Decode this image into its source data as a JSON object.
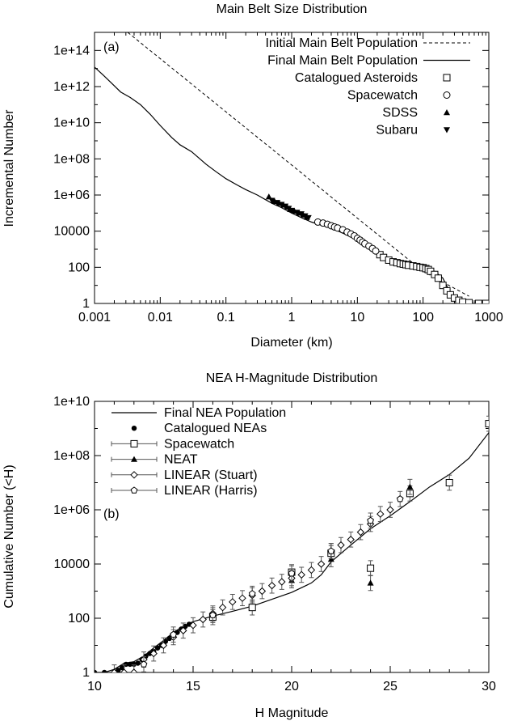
{
  "chart_data": [
    {
      "type": "line",
      "panel_label": "(a)",
      "title": "Main Belt Size Distribution",
      "xlabel": "Diameter (km)",
      "ylabel": "Incremental Number",
      "xscale": "log",
      "yscale": "log",
      "xlim": [
        0.001,
        1000
      ],
      "ylim": [
        1,
        1000000000000000.0
      ],
      "xticks": [
        0.001,
        0.01,
        0.1,
        1,
        10,
        100,
        1000
      ],
      "xtick_labels": [
        "0.001",
        "0.01",
        "0.1",
        "1",
        "10",
        "100",
        "1000"
      ],
      "yticks": [
        1,
        100,
        10000,
        1000000,
        100000000,
        10000000000,
        1000000000000,
        100000000000000
      ],
      "ytick_labels": [
        "1",
        "100",
        "10000",
        "1e+06",
        "1e+08",
        "1e+10",
        "1e+12",
        "1e+14"
      ],
      "grid": false,
      "legend_position": "top-right",
      "series": [
        {
          "name": "Initial Main Belt Population",
          "style": "dashed",
          "x": [
            0.0032,
            100,
            500
          ],
          "y": [
            1000000000000000.0,
            60,
            2.5
          ]
        },
        {
          "name": "Final Main Belt Population",
          "style": "solid",
          "x": [
            0.001,
            0.0013,
            0.0018,
            0.0025,
            0.0035,
            0.005,
            0.007,
            0.01,
            0.015,
            0.02,
            0.03,
            0.05,
            0.07,
            0.1,
            0.15,
            0.2,
            0.3,
            0.5,
            0.7,
            1,
            1.5,
            2,
            3,
            4,
            5,
            7,
            10,
            15,
            20,
            30,
            50,
            70,
            100,
            150,
            200,
            250,
            300,
            400,
            500
          ],
          "y": [
            12000000000000.0,
            5000000000000.0,
            1600000000000.0,
            500000000000.0,
            250000000000.0,
            100000000000.0,
            30000000000.0,
            7000000000.0,
            1500000000.0,
            600000000.0,
            250000000.0,
            50000000.0,
            20000000.0,
            8000000.0,
            3500000.0,
            2000000.0,
            1000000.0,
            350000.0,
            200000.0,
            100000.0,
            50000.0,
            32000.0,
            20000.0,
            15000.0,
            10500.0,
            6000,
            3000,
            1000,
            500,
            250,
            180,
            140,
            100,
            60,
            25,
            5,
            2,
            1.3,
            1
          ]
        },
        {
          "name": "Catalogued Asteroids",
          "marker": "square-open",
          "x": [
            22,
            25,
            30,
            35,
            40,
            45,
            50,
            55,
            60,
            70,
            80,
            90,
            100,
            110,
            120,
            130,
            150,
            170,
            200,
            230,
            260,
            300,
            350,
            400,
            500,
            700,
            900
          ],
          "y": [
            500,
            350,
            250,
            200,
            180,
            160,
            150,
            140,
            130,
            120,
            110,
            100,
            95,
            85,
            75,
            60,
            40,
            25,
            10,
            5,
            3,
            2,
            1.5,
            1.2,
            1.1,
            1,
            1
          ]
        },
        {
          "name": "Spacewatch",
          "marker": "circle-open",
          "x": [
            2.5,
            3,
            3.5,
            4,
            4.5,
            5,
            6,
            7,
            8,
            9,
            10,
            11,
            12,
            13,
            15,
            17,
            19
          ],
          "y": [
            32000.0,
            28000.0,
            24000.0,
            20000.0,
            17000.0,
            15000.0,
            12000.0,
            9000,
            7000,
            5500,
            4000,
            3200,
            2500,
            2000,
            1500,
            1100,
            800
          ]
        },
        {
          "name": "SDSS",
          "marker": "triangle-up-filled",
          "x": [
            0.45,
            0.55,
            0.65,
            0.75,
            0.85,
            0.95,
            1.1,
            1.3,
            1.5,
            1.7
          ],
          "y": [
            800000.0,
            450000.0,
            350000.0,
            280000.0,
            220000.0,
            160000.0,
            130000.0,
            100000.0,
            80000.0,
            60000.0
          ]
        },
        {
          "name": "Subaru",
          "marker": "triangle-down-filled",
          "x": [
            0.5,
            0.6,
            0.7,
            0.8,
            0.9,
            1,
            1.2,
            1.4,
            1.6,
            1.8
          ],
          "y": [
            500000.0,
            380000.0,
            300000.0,
            240000.0,
            180000.0,
            140000.0,
            110000.0,
            90000.0,
            70000.0,
            55000.0
          ]
        }
      ]
    },
    {
      "type": "line",
      "panel_label": "(b)",
      "title": "NEA H-Magnitude Distribution",
      "xlabel": "H Magnitude",
      "ylabel": "Cumulative Number (<H)",
      "xscale": "linear",
      "yscale": "log",
      "xlim": [
        10,
        30
      ],
      "ylim": [
        1,
        10000000000.0
      ],
      "xticks": [
        10,
        15,
        20,
        25,
        30
      ],
      "xtick_labels": [
        "10",
        "15",
        "20",
        "25",
        "30"
      ],
      "yticks": [
        1,
        100,
        10000,
        1000000,
        100000000,
        10000000000
      ],
      "ytick_labels": [
        "1",
        "100",
        "10000",
        "1e+06",
        "1e+08",
        "1e+10"
      ],
      "grid": false,
      "legend_position": "top-left",
      "series": [
        {
          "name": "Final NEA Population",
          "style": "solid",
          "x": [
            10,
            10.5,
            11,
            11.5,
            12,
            12.5,
            13,
            13.5,
            14,
            14.5,
            15,
            16,
            17,
            18,
            19,
            20,
            21,
            21.5,
            22,
            23,
            24,
            25,
            26,
            27,
            28,
            29,
            30
          ],
          "y": [
            1,
            1,
            1.3,
            2.2,
            2.5,
            4,
            8,
            15,
            30,
            50,
            75,
            120,
            180,
            280,
            500,
            900,
            2000,
            4000,
            12000.0,
            50000.0,
            200000.0,
            600000.0,
            2000000.0,
            7000000.0,
            20000000.0,
            80000000.0,
            700000000.0
          ]
        },
        {
          "name": "Catalogued NEAs",
          "marker": "circle-filled",
          "x": [
            10,
            10.5,
            11,
            11.2,
            11.4,
            11.6,
            11.8,
            12,
            12.2,
            12.4,
            12.6,
            12.8,
            13,
            13.2,
            13.4,
            13.6,
            13.8,
            14,
            14.2,
            14.4,
            14.6,
            14.8
          ],
          "y": [
            1,
            1,
            1,
            1.2,
            1.5,
            2,
            2,
            2,
            2.2,
            3,
            4,
            5,
            6,
            8,
            10,
            14,
            18,
            24,
            30,
            40,
            50,
            60
          ]
        },
        {
          "name": "Spacewatch",
          "marker": "square-open",
          "errorbars": true,
          "x": [
            16,
            18,
            20,
            22,
            24,
            26,
            28,
            30
          ],
          "y": [
            110,
            250,
            5000,
            25000.0,
            7000,
            4000000.0,
            10000000.0,
            1500000000.0
          ]
        },
        {
          "name": "NEAT",
          "marker": "triangle-up-filled",
          "errorbars": true,
          "x": [
            20,
            22,
            24,
            26
          ],
          "y": [
            2500,
            15000.0,
            2000.0,
            7000000.0
          ]
        },
        {
          "name": "LINEAR (Stuart)",
          "marker": "diamond-open",
          "errorbars": true,
          "x": [
            11,
            11.5,
            12,
            12.5,
            13,
            13.5,
            14,
            14.5,
            15,
            15.5,
            16,
            16.5,
            17,
            17.5,
            18,
            18.5,
            19,
            19.5,
            20,
            20.5,
            21,
            21.5,
            22,
            22.5,
            23,
            23.5,
            24,
            24.5,
            25
          ],
          "y": [
            1,
            1,
            1,
            3,
            5,
            10,
            20,
            35,
            55,
            90,
            150,
            250,
            400,
            550,
            700,
            1000,
            1600,
            2200,
            3000,
            4000,
            6000,
            10000.0,
            30000.0,
            50000.0,
            80000.0,
            150000.0,
            300000.0,
            700000.0,
            1000000.0
          ]
        },
        {
          "name": "LINEAR (Harris)",
          "marker": "pentagon-open",
          "errorbars": true,
          "x": [
            12.5,
            14,
            16,
            18,
            20,
            22,
            24,
            25.5
          ],
          "y": [
            2,
            25,
            130,
            800,
            4500,
            30000.0,
            400000.0,
            2500000.0
          ]
        }
      ]
    }
  ]
}
